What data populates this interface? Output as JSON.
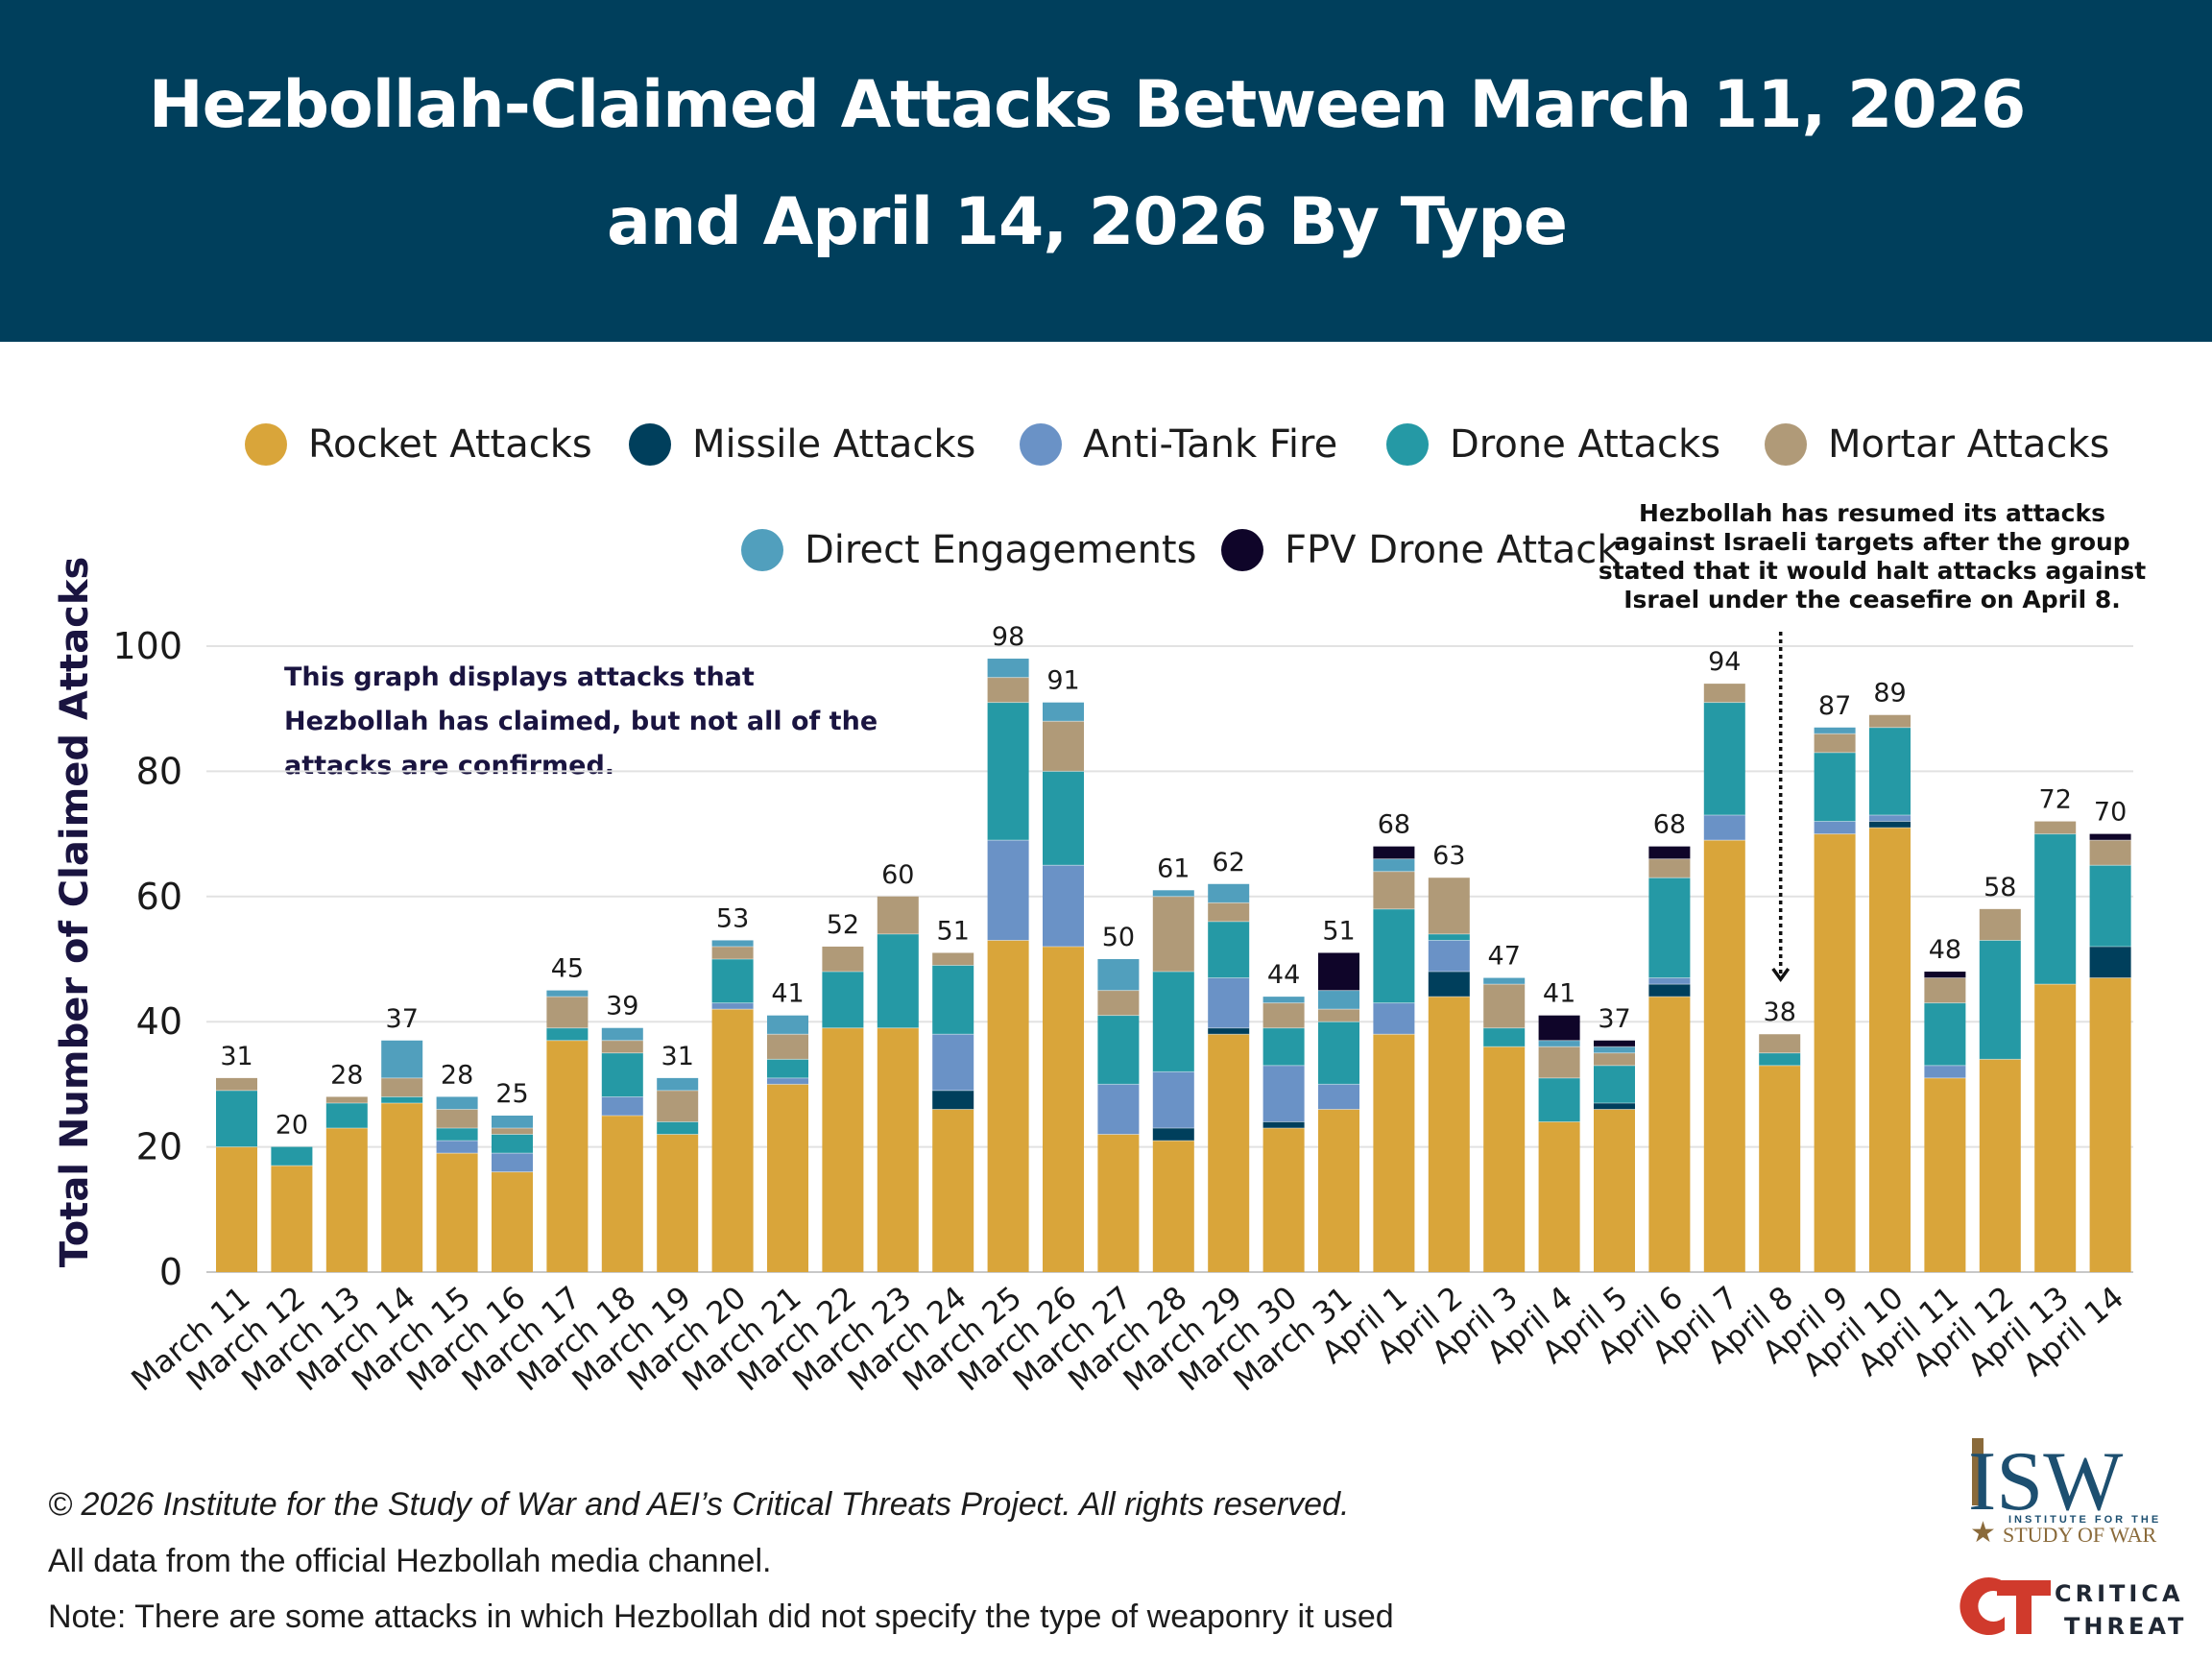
{
  "header": {
    "title_line1": "Hezbollah-Claimed Attacks Between March 11, 2026",
    "title_line2": "and April 14, 2026 By Type",
    "background_color": "#003f5c"
  },
  "annotations": {
    "disclaimer": "This graph displays attacks that Hezbollah has claimed, but not all of the attacks are confirmed.",
    "ceasefire_note": "Hezbollah has resumed its attacks against Israeli targets after the group stated that it would halt attacks against Israel under the ceasefire on April 8.",
    "ceasefire_arrow_target": "April 8"
  },
  "footer": {
    "copyright": "© 2026 Institute for the Study of War and AEI’s Critical Threats Project. All rights reserved.",
    "source": "All data from the official Hezbollah media channel.",
    "note": "Note: There are some attacks in which Hezbollah did not specify the type of weaponry it used"
  },
  "logos": {
    "isw_main": "ISW",
    "isw_sub1": "INSTITUTE FOR THE",
    "isw_sub2": "STUDY OF WAR",
    "ct_line1": "CRITICAL",
    "ct_line2": "THREATS"
  },
  "chart_data": {
    "type": "bar",
    "stacked": true,
    "title": "Hezbollah-Claimed Attacks Between March 11, 2026 and April 14, 2026 By Type",
    "xlabel": "",
    "ylabel": "Total Number of Claimed Attacks",
    "ylim": [
      0,
      100
    ],
    "yticks": [
      0,
      20,
      40,
      60,
      80,
      100
    ],
    "grid": true,
    "legend_position": "top",
    "categories": [
      "March 11",
      "March 12",
      "March 13",
      "March 14",
      "March 15",
      "March 16",
      "March 17",
      "March 18",
      "March 19",
      "March 20",
      "March 21",
      "March 22",
      "March 23",
      "March 24",
      "March 25",
      "March 26",
      "March 27",
      "March 28",
      "March 29",
      "March 30",
      "March 31",
      "April 1",
      "April 2",
      "April 3",
      "April 4",
      "April 5",
      "April 6",
      "April 7",
      "April 8",
      "April 9",
      "April 10",
      "April 11",
      "April 12",
      "April 13",
      "April 14"
    ],
    "totals": [
      31,
      20,
      28,
      37,
      28,
      25,
      45,
      39,
      31,
      53,
      41,
      52,
      60,
      51,
      98,
      91,
      50,
      61,
      62,
      44,
      51,
      68,
      63,
      47,
      41,
      37,
      68,
      94,
      38,
      87,
      89,
      48,
      58,
      72,
      70
    ],
    "series": [
      {
        "name": "Rocket Attacks",
        "color": "#d9a53a",
        "values": [
          20,
          17,
          23,
          27,
          19,
          16,
          37,
          25,
          22,
          42,
          30,
          39,
          39,
          26,
          53,
          52,
          22,
          21,
          38,
          23,
          26,
          38,
          44,
          36,
          24,
          26,
          44,
          69,
          33,
          70,
          71,
          31,
          34,
          46,
          47
        ]
      },
      {
        "name": "Missile Attacks",
        "color": "#003f5c",
        "values": [
          0,
          0,
          0,
          0,
          0,
          0,
          0,
          0,
          0,
          0,
          0,
          0,
          0,
          3,
          0,
          0,
          0,
          2,
          1,
          1,
          0,
          0,
          4,
          0,
          0,
          1,
          2,
          0,
          0,
          0,
          1,
          0,
          0,
          0,
          5
        ]
      },
      {
        "name": "Anti-Tank Fire",
        "color": "#6a92c6",
        "values": [
          0,
          0,
          0,
          0,
          2,
          3,
          0,
          3,
          0,
          1,
          1,
          0,
          0,
          9,
          16,
          13,
          8,
          9,
          8,
          9,
          4,
          5,
          5,
          0,
          0,
          0,
          1,
          4,
          0,
          2,
          1,
          2,
          0,
          0,
          0
        ]
      },
      {
        "name": "Drone Attacks",
        "color": "#2599a5",
        "values": [
          9,
          3,
          4,
          1,
          2,
          3,
          2,
          7,
          2,
          7,
          3,
          9,
          15,
          11,
          22,
          15,
          11,
          16,
          9,
          6,
          10,
          15,
          1,
          3,
          7,
          6,
          16,
          18,
          2,
          11,
          14,
          10,
          19,
          24,
          13
        ]
      },
      {
        "name": "Mortar Attacks",
        "color": "#b09a78",
        "values": [
          2,
          0,
          1,
          3,
          3,
          1,
          5,
          2,
          5,
          2,
          4,
          4,
          6,
          2,
          4,
          8,
          4,
          12,
          3,
          4,
          2,
          6,
          9,
          7,
          5,
          2,
          3,
          3,
          3,
          3,
          2,
          4,
          5,
          2,
          4
        ]
      },
      {
        "name": "Direct Engagements",
        "color": "#519fbd",
        "values": [
          0,
          0,
          0,
          6,
          2,
          2,
          1,
          2,
          2,
          1,
          3,
          0,
          0,
          0,
          3,
          3,
          5,
          1,
          3,
          1,
          3,
          2,
          0,
          1,
          1,
          1,
          0,
          0,
          0,
          1,
          0,
          0,
          0,
          0,
          0
        ]
      },
      {
        "name": "FPV Drone Attack",
        "color": "#0f0529",
        "values": [
          0,
          0,
          0,
          0,
          0,
          0,
          0,
          0,
          0,
          0,
          0,
          0,
          0,
          0,
          0,
          0,
          0,
          0,
          0,
          0,
          6,
          2,
          0,
          0,
          4,
          1,
          2,
          0,
          0,
          0,
          0,
          1,
          0,
          0,
          1
        ]
      }
    ]
  }
}
